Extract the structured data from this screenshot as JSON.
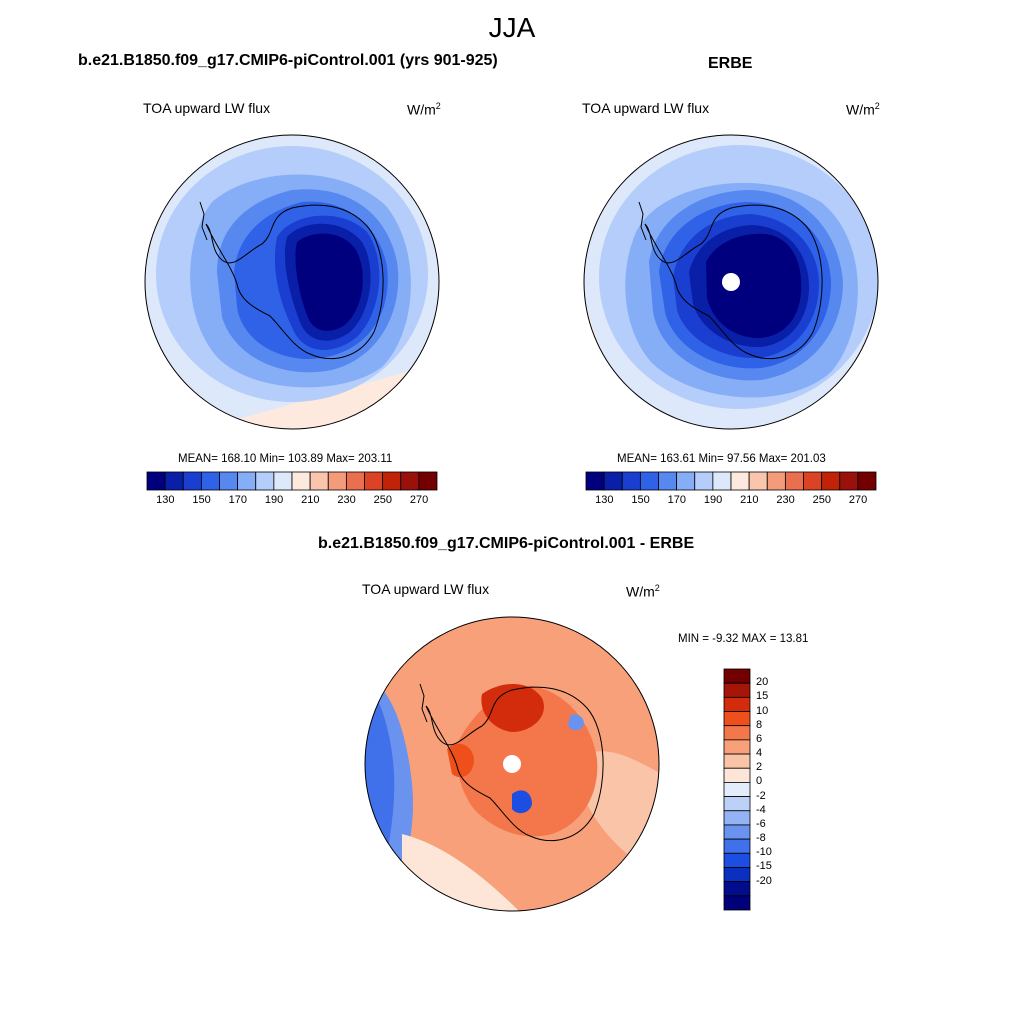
{
  "title": "JJA",
  "panels": [
    {
      "id": "model",
      "case_title": "b.e21.B1850.f09_g17.CMIP6-piControl.001 (yrs 901-925)",
      "variable": "TOA upward LW flux",
      "units_base": "W/m",
      "units_exp": "2",
      "stats": "MEAN= 168.10  Min= 103.89  Max= 203.11",
      "polar_hole": false
    },
    {
      "id": "obs",
      "case_title": "ERBE",
      "variable": "TOA upward LW flux",
      "units_base": "W/m",
      "units_exp": "2",
      "stats": "MEAN= 163.61  Min=  97.56  Max= 201.03",
      "polar_hole": true
    },
    {
      "id": "diff",
      "case_title": "b.e21.B1850.f09_g17.CMIP6-piControl.001 - ERBE",
      "variable": "TOA upward LW flux",
      "units_base": "W/m",
      "units_exp": "2",
      "stats": "MIN =  -9.32 MAX =  13.81",
      "polar_hole": true
    }
  ],
  "abs_colorbar": {
    "colors": [
      "#00007f",
      "#0a1fa8",
      "#1a3fd0",
      "#2f62e6",
      "#5788f0",
      "#86aef7",
      "#b5cdfa",
      "#dde9fb",
      "#fde9dd",
      "#f9c5ad",
      "#f29c7c",
      "#ea6f4e",
      "#dc4324",
      "#c02308",
      "#99110a",
      "#720000"
    ],
    "tick_labels": [
      "130",
      "150",
      "170",
      "190",
      "210",
      "230",
      "250",
      "270"
    ]
  },
  "diff_colorbar": {
    "colors": [
      "#720000",
      "#a51508",
      "#d22c0d",
      "#ef4f1a",
      "#f3774a",
      "#f7a07a",
      "#fac4a9",
      "#fde6d8",
      "#e3ecfb",
      "#bcd1f8",
      "#93b3f5",
      "#6a93f0",
      "#4070ea",
      "#1c4ee3",
      "#0b2fbe",
      "#010d8c",
      "#00007a"
    ],
    "tick_labels": [
      "20",
      "15",
      "10",
      "8",
      "6",
      "4",
      "2",
      "0",
      "-2",
      "-4",
      "-6",
      "-8",
      "-10",
      "-15",
      "-20"
    ]
  }
}
